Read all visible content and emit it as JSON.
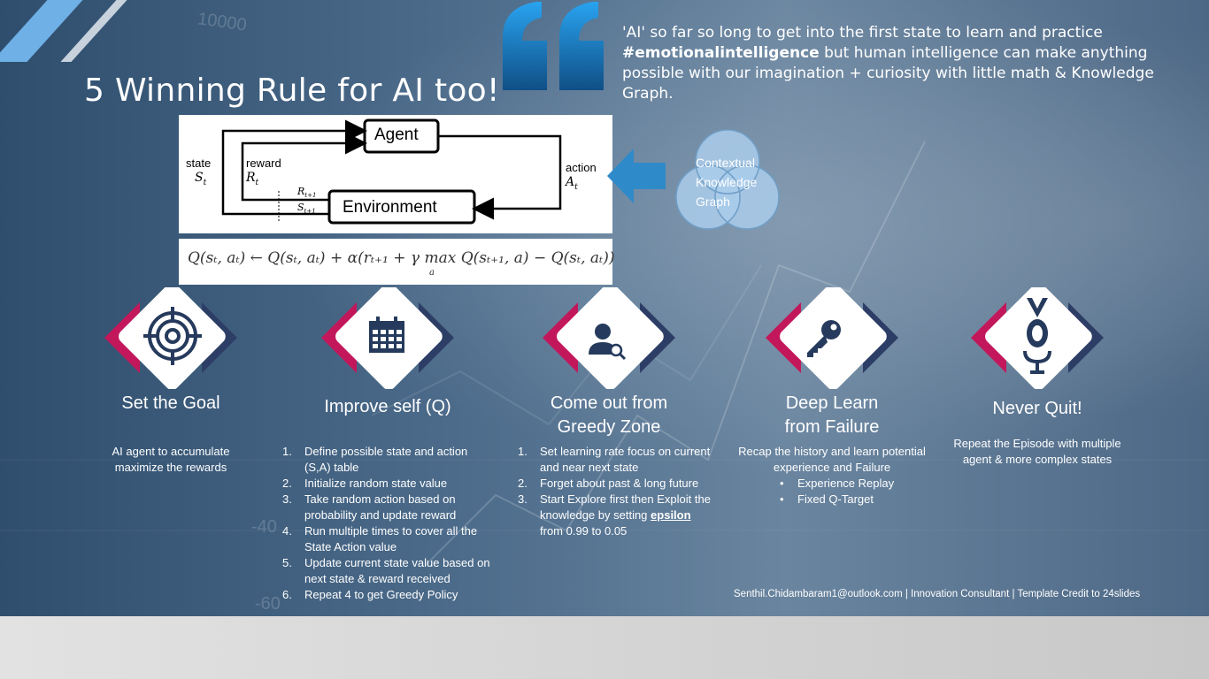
{
  "title": "5 Winning Rule for AI too!",
  "quote": {
    "part1": "'AI' so far so long to get into the first state to learn and practice",
    "hashtag": "#emotionalintelligence",
    "part2": "but human intelligence can make anything possible with our imagination + curiosity with little math & Knowledge Graph."
  },
  "background_numbers": [
    "10000",
    "-40",
    "-60"
  ],
  "diagram": {
    "agent": "Agent",
    "environment": "Environment",
    "state": "state",
    "state_symbol": "S",
    "state_sub": "t",
    "reward": "reward",
    "reward_symbol": "R",
    "reward_sub": "t",
    "action": "action",
    "action_symbol": "A",
    "action_sub": "t",
    "r_next": "R",
    "r_next_sub": "t+1",
    "s_next": "S",
    "s_next_sub": "t+1"
  },
  "equation": "Q(sₜ, aₜ) ← Q(sₜ, aₜ) + α(rₜ₊₁ + γ max Q(sₜ₊₁, a) − Q(sₜ, aₜ))",
  "equation_parts": {
    "left": "Q(s",
    "full": "Q(s_t, a_t) ← Q(s_t, a_t) + α(r_{t+1} + γ max_a Q(s_{t+1}, a) − Q(s_t, a_t))",
    "max_sub": "a"
  },
  "venn": {
    "line1": "Contextual",
    "line2": "Knowledge",
    "line3": "Graph"
  },
  "rules": [
    {
      "icon": "target-icon",
      "title": "Set the Goal",
      "desc": "AI agent to accumulate maximize the rewards"
    },
    {
      "icon": "calendar-icon",
      "title": "Improve self (Q)",
      "items": [
        "Define possible state and action (S,A) table",
        "Initialize random state value",
        "Take random action based on probability and update reward",
        "Run multiple times to cover all the State Action value",
        "Update current state value based on next state & reward received",
        "Repeat 4 to get Greedy Policy"
      ]
    },
    {
      "icon": "user-search-icon",
      "title_line1": "Come out from",
      "title_line2": "Greedy Zone",
      "items": [
        "Set learning rate focus on current and near next state",
        "Forget about past & long future"
      ],
      "item3_pre": "Start Explore first then Exploit the knowledge by setting",
      "item3_bold": "epsilon",
      "item3_post": "from 0.99 to 0.05"
    },
    {
      "icon": "key-icon",
      "title_line1": "Deep Learn",
      "title_line2": "from Failure",
      "desc": "Recap the history and learn potential experience and Failure",
      "bullets": [
        "Experience Replay",
        "Fixed Q-Target"
      ]
    },
    {
      "icon": "medal-icon",
      "title": "Never Quit!",
      "desc": "Repeat the Episode with multiple agent & more complex states"
    }
  ],
  "footer": "Senthil.Chidambaram1@outlook.com | Innovation Consultant | Template Credit to 24slides",
  "colors": {
    "accent_blue": "#1f88d0",
    "diamond_pink": "#c2185b",
    "diamond_navy": "#2d3e66",
    "icon_navy": "#253a5c"
  }
}
